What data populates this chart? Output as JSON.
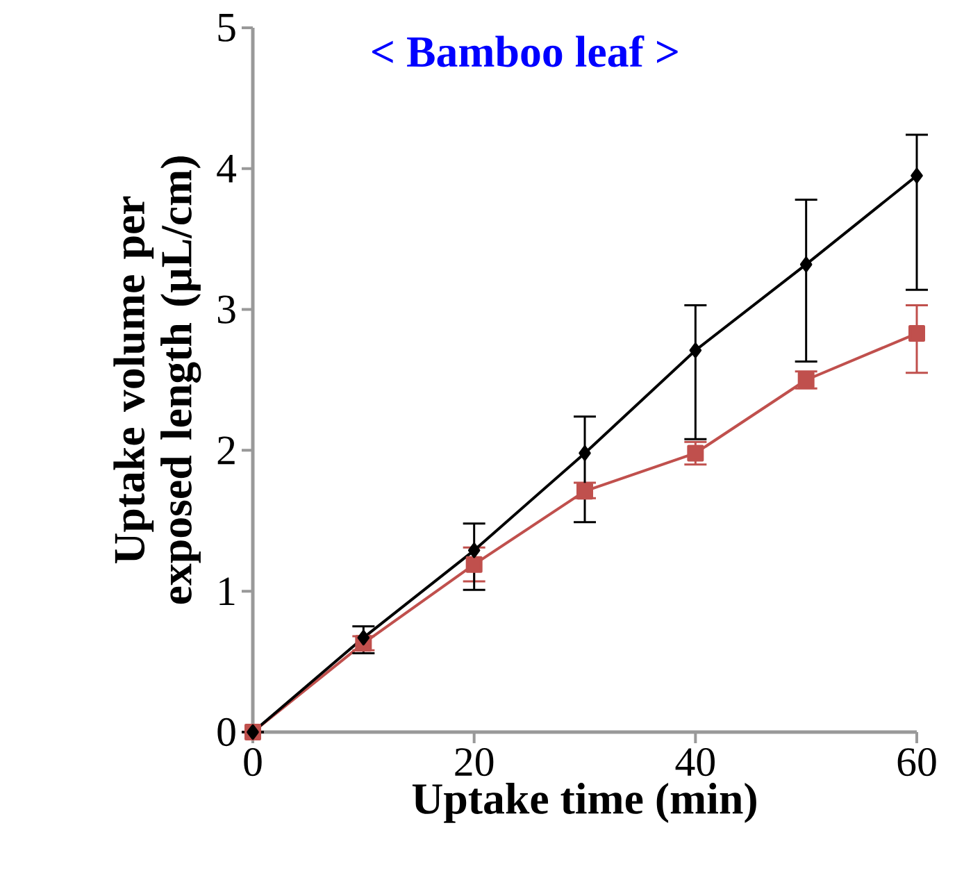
{
  "chart_data": {
    "type": "line",
    "title": "< Bamboo leaf >",
    "xlabel": "Uptake time (min)",
    "ylabel": "Uptake volume per exposed length (μL/cm)",
    "x": [
      0,
      10,
      20,
      30,
      40,
      50,
      60
    ],
    "series": [
      {
        "color": "#000000",
        "marker": "diamond",
        "values": [
          0,
          0.67,
          1.29,
          1.98,
          2.71,
          3.32,
          3.95
        ],
        "errors": [
          null,
          [
            0.56,
            0.75
          ],
          [
            1.01,
            1.48
          ],
          [
            1.49,
            2.24
          ],
          [
            2.08,
            3.03
          ],
          [
            2.63,
            3.78
          ],
          [
            3.14,
            4.24
          ]
        ]
      },
      {
        "color": "#c0504d",
        "marker": "square",
        "values": [
          0,
          0.63,
          1.19,
          1.71,
          1.98,
          2.5,
          2.83
        ],
        "errors": [
          null,
          [
            0.58,
            0.68
          ],
          [
            1.07,
            1.31
          ],
          [
            1.66,
            1.77
          ],
          [
            1.9,
            2.06
          ],
          [
            2.44,
            2.56
          ],
          [
            2.55,
            3.03
          ]
        ]
      }
    ],
    "xlim": [
      0,
      60
    ],
    "xticks": [
      0,
      20,
      40,
      60
    ],
    "ylim": [
      0,
      5
    ],
    "yticks": [
      0,
      1,
      2,
      3,
      4,
      5
    ],
    "grid": false
  }
}
